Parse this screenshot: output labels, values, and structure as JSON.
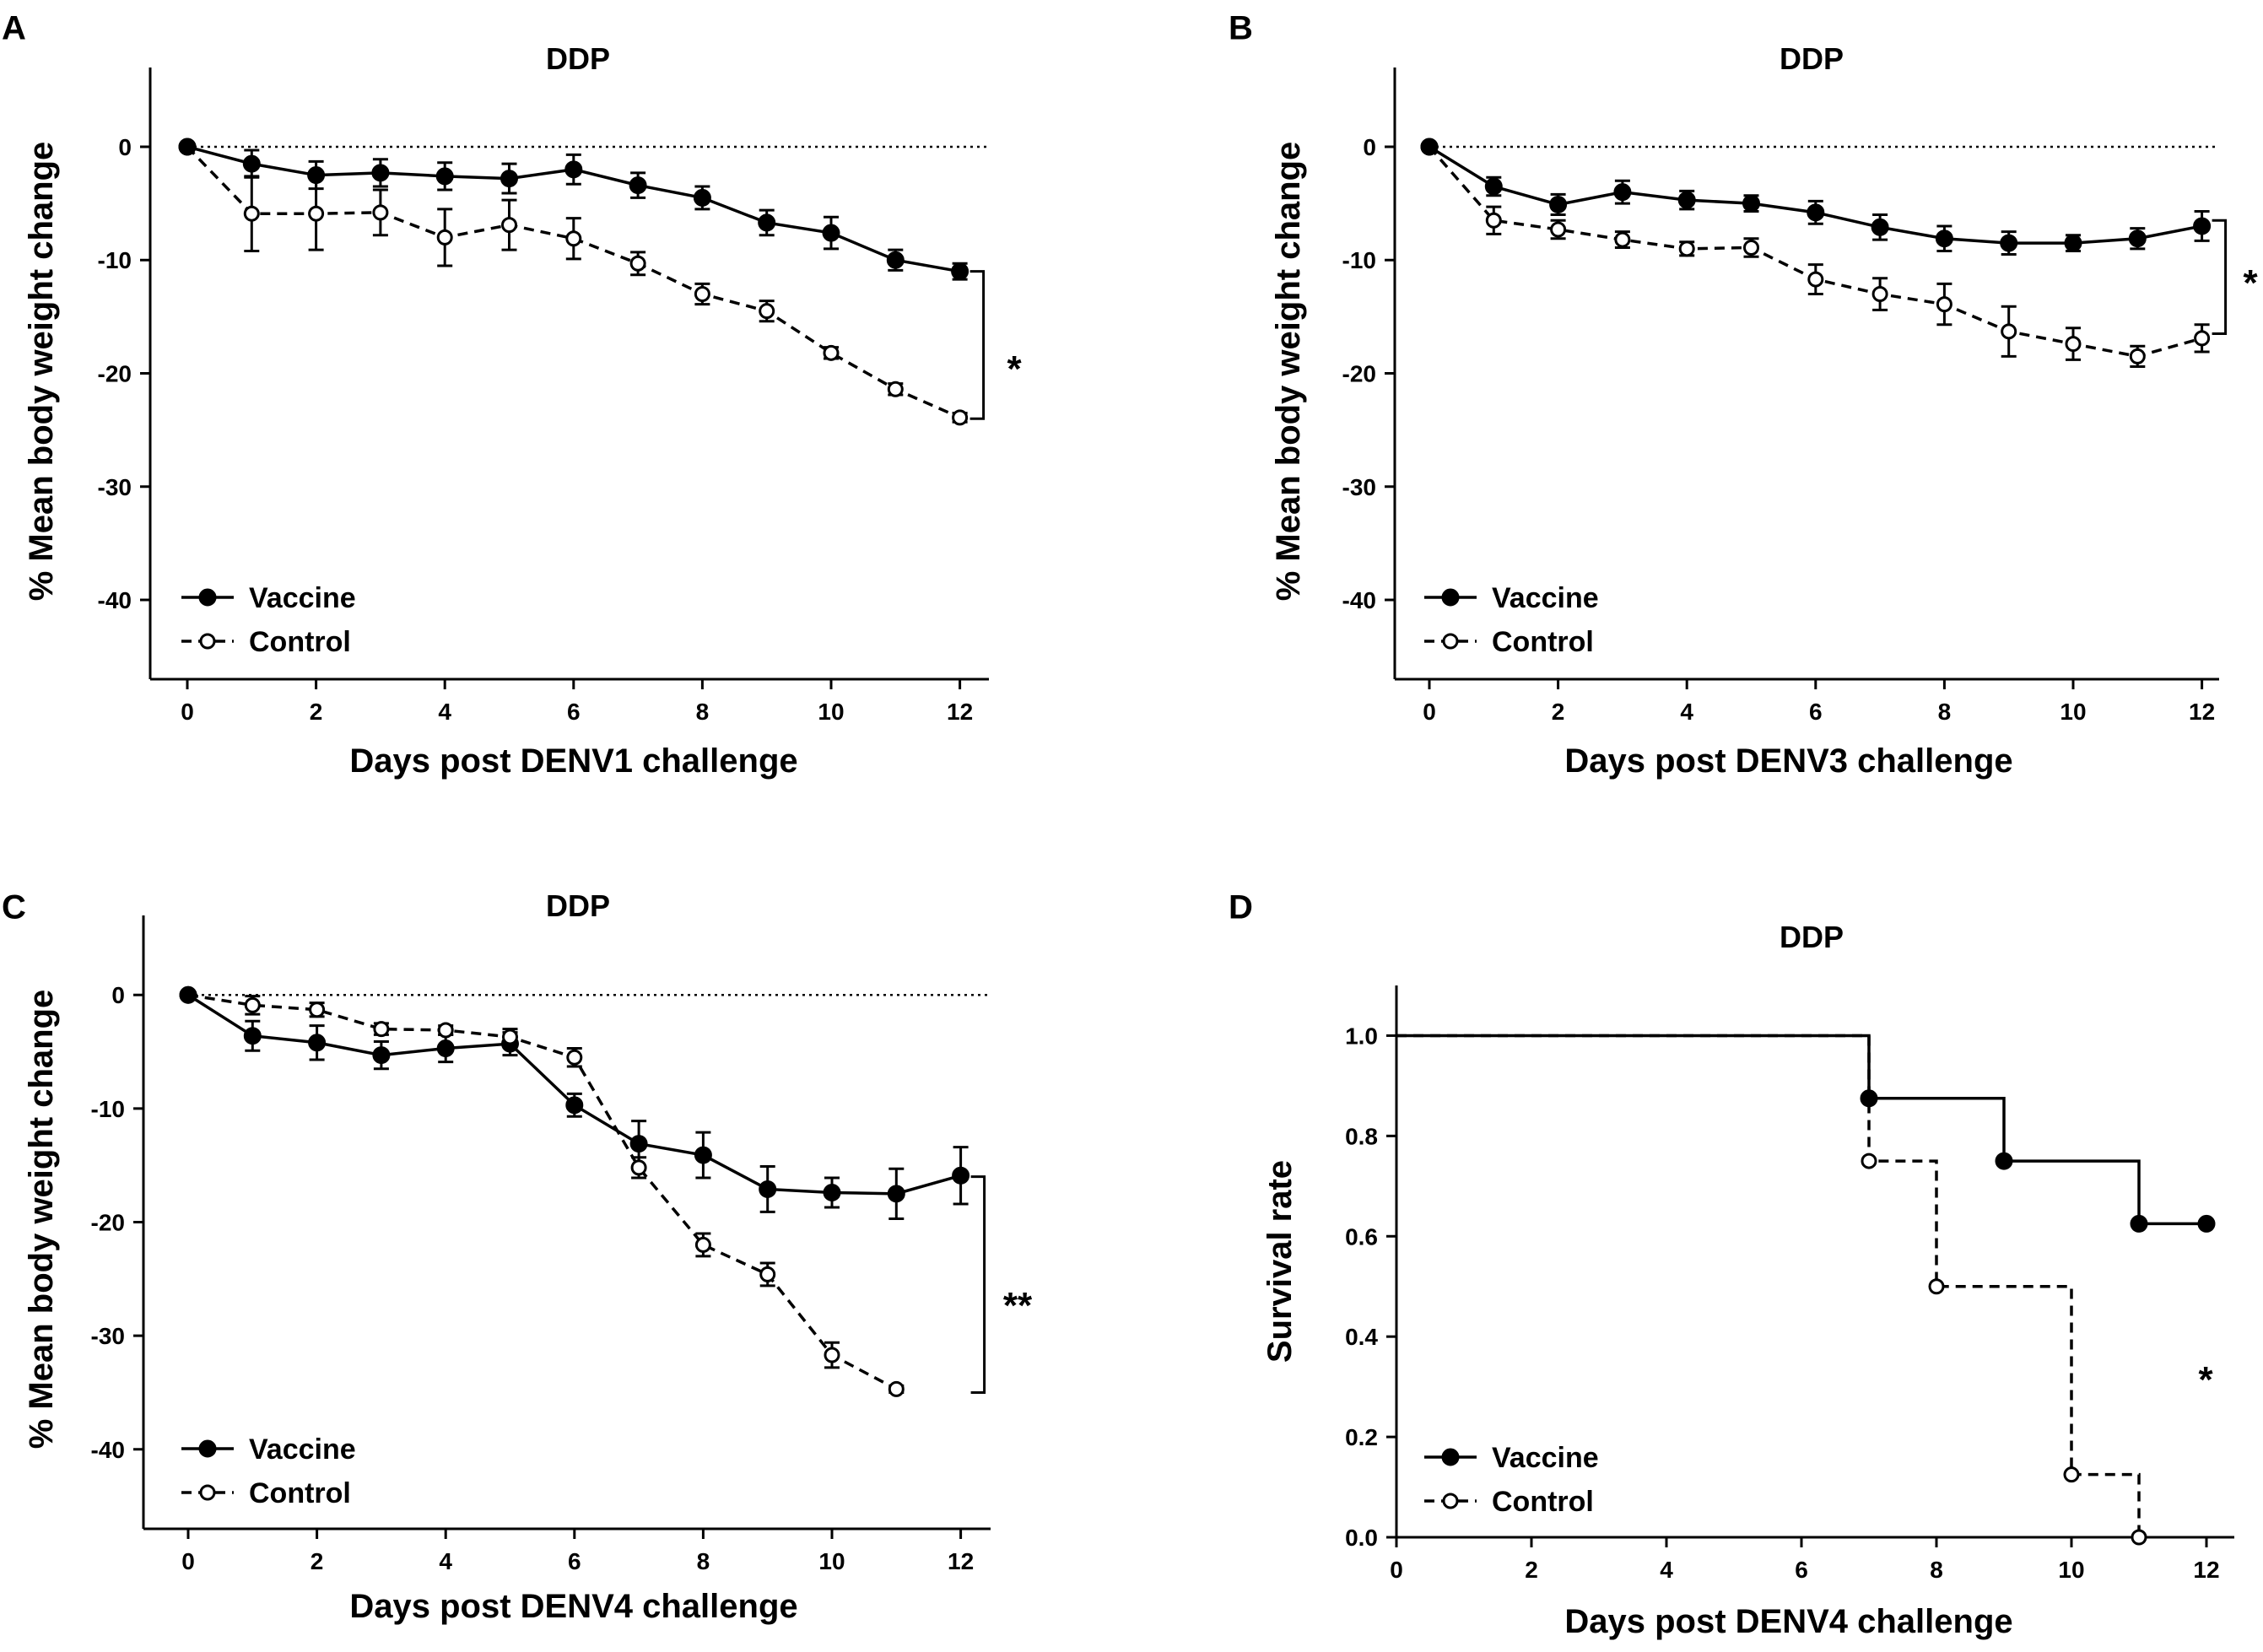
{
  "colors": {
    "series": "#000000",
    "background": "#ffffff"
  },
  "chart_data": [
    {
      "panel": "A",
      "type": "line",
      "title": "DDP",
      "xlabel": "Days post DENV1 challenge",
      "ylabel": "% Mean body weight change",
      "xlim": [
        0,
        12
      ],
      "ylim": [
        -47,
        7
      ],
      "xticks": [
        0,
        2,
        4,
        6,
        8,
        10,
        12
      ],
      "yticks": [
        0,
        -10,
        -20,
        -30,
        -40
      ],
      "reference_line": 0,
      "legend": {
        "position": "bottom-left",
        "entries": [
          "Vaccine",
          "Control"
        ]
      },
      "significance": "*",
      "sig_between": [
        12,
        -11,
        -24
      ],
      "series": [
        {
          "name": "Vaccine",
          "marker": "filled-circle",
          "line": "solid",
          "x": [
            0,
            1,
            2,
            3,
            4,
            5,
            6,
            7,
            8,
            9,
            10,
            11,
            12
          ],
          "y": [
            0,
            -1.5,
            -2.5,
            -2.3,
            -2.6,
            -2.8,
            -2.0,
            -3.4,
            -4.5,
            -6.7,
            -7.6,
            -10.0,
            -11.0
          ],
          "err": [
            0,
            1.2,
            1.2,
            1.2,
            1.2,
            1.3,
            1.3,
            1.1,
            1.0,
            1.1,
            1.4,
            0.9,
            0.7
          ]
        },
        {
          "name": "Control",
          "marker": "open-circle",
          "line": "dashed",
          "x": [
            0,
            1,
            2,
            3,
            4,
            5,
            6,
            7,
            8,
            9,
            10,
            11,
            12
          ],
          "y": [
            0,
            -5.9,
            -5.9,
            -5.8,
            -8.0,
            -6.9,
            -8.1,
            -10.3,
            -13.0,
            -14.5,
            -18.2,
            -21.4,
            -23.9
          ],
          "err": [
            0,
            3.3,
            3.2,
            2.0,
            2.5,
            2.2,
            1.8,
            1.0,
            0.9,
            0.9,
            0.5,
            0.5,
            0.4
          ]
        }
      ]
    },
    {
      "panel": "B",
      "type": "line",
      "title": "DDP",
      "xlabel": "Days post DENV3 challenge",
      "ylabel": "% Mean body weight change",
      "xlim": [
        0,
        12
      ],
      "ylim": [
        -47,
        7
      ],
      "xticks": [
        0,
        2,
        4,
        6,
        8,
        10,
        12
      ],
      "yticks": [
        0,
        -10,
        -20,
        -30,
        -40
      ],
      "reference_line": 0,
      "legend": {
        "position": "bottom-left",
        "entries": [
          "Vaccine",
          "Control"
        ]
      },
      "significance": "*",
      "sig_between": [
        12,
        -6.5,
        -16.5
      ],
      "series": [
        {
          "name": "Vaccine",
          "marker": "filled-circle",
          "line": "solid",
          "x": [
            0,
            1,
            2,
            3,
            4,
            5,
            6,
            7,
            8,
            9,
            10,
            11,
            12
          ],
          "y": [
            0,
            -3.5,
            -5.1,
            -4.0,
            -4.7,
            -5.0,
            -5.8,
            -7.1,
            -8.1,
            -8.5,
            -8.5,
            -8.1,
            -7.0
          ],
          "err": [
            0,
            0.8,
            0.9,
            1.0,
            0.8,
            0.7,
            1.0,
            1.1,
            1.1,
            1.0,
            0.7,
            0.9,
            1.3
          ]
        },
        {
          "name": "Control",
          "marker": "open-circle",
          "line": "dashed",
          "x": [
            0,
            1,
            2,
            3,
            4,
            5,
            6,
            7,
            8,
            9,
            10,
            11,
            12
          ],
          "y": [
            0,
            -6.5,
            -7.3,
            -8.2,
            -9.0,
            -8.9,
            -11.7,
            -13.0,
            -13.9,
            -16.3,
            -17.4,
            -18.5,
            -16.9
          ],
          "err": [
            0,
            1.2,
            0.8,
            0.7,
            0.6,
            0.8,
            1.3,
            1.4,
            1.8,
            2.2,
            1.4,
            0.9,
            1.2
          ]
        }
      ]
    },
    {
      "panel": "C",
      "type": "line",
      "title": "DDP",
      "xlabel": "Days post DENV4 challenge",
      "ylabel": "% Mean body weight change",
      "xlim": [
        0,
        12
      ],
      "ylim": [
        -47,
        7
      ],
      "xticks": [
        0,
        2,
        4,
        6,
        8,
        10,
        12
      ],
      "yticks": [
        0,
        -10,
        -20,
        -30,
        -40
      ],
      "reference_line": 0,
      "legend": {
        "position": "bottom-left",
        "entries": [
          "Vaccine",
          "Control"
        ]
      },
      "significance": "**",
      "sig_between": [
        12,
        -16,
        -35
      ],
      "series": [
        {
          "name": "Vaccine",
          "marker": "filled-circle",
          "line": "solid",
          "x": [
            0,
            1,
            2,
            3,
            4,
            5,
            6,
            7,
            8,
            9,
            10,
            11,
            12
          ],
          "y": [
            0,
            -3.6,
            -4.2,
            -5.3,
            -4.7,
            -4.3,
            -9.7,
            -13.1,
            -14.1,
            -17.1,
            -17.4,
            -17.5,
            -15.9
          ],
          "err": [
            0,
            1.3,
            1.5,
            1.2,
            1.2,
            1.0,
            1.0,
            2.0,
            2.0,
            2.0,
            1.3,
            2.2,
            2.5
          ]
        },
        {
          "name": "Control",
          "marker": "open-circle",
          "line": "dashed",
          "x": [
            0,
            1,
            2,
            3,
            4,
            5,
            6,
            7,
            8,
            9,
            10,
            11
          ],
          "y": [
            0,
            -0.9,
            -1.3,
            -3.0,
            -3.1,
            -3.7,
            -5.5,
            -15.2,
            -22.0,
            -24.6,
            -31.7,
            -34.7
          ],
          "err": [
            0,
            0.8,
            0.6,
            0.5,
            0.4,
            0.7,
            0.8,
            0.9,
            1.0,
            1.0,
            1.1,
            0.3
          ]
        }
      ]
    },
    {
      "panel": "D",
      "type": "step",
      "title": "DDP",
      "xlabel": "Days post DENV4 challenge",
      "ylabel": "Survival rate",
      "xlim": [
        0,
        12.5
      ],
      "ylim": [
        0,
        1.1
      ],
      "xticks": [
        0,
        2,
        4,
        6,
        8,
        10,
        12
      ],
      "yticks": [
        0.0,
        0.2,
        0.4,
        0.6,
        0.8,
        1.0
      ],
      "ytick_labels": [
        "0.0",
        "0.2",
        "0.4",
        "0.6",
        "0.8",
        "1.0"
      ],
      "legend": {
        "position": "bottom-left",
        "entries": [
          "Vaccine",
          "Control"
        ]
      },
      "significance": "*",
      "sig_at": [
        12,
        0.33
      ],
      "series": [
        {
          "name": "Vaccine",
          "marker": "filled-circle",
          "line": "solid",
          "x": [
            0,
            7,
            9,
            11,
            12
          ],
          "y": [
            1.0,
            0.875,
            0.75,
            0.625,
            0.625
          ],
          "markers_at": [
            7,
            9,
            11,
            12
          ]
        },
        {
          "name": "Control",
          "marker": "open-circle",
          "line": "dashed",
          "x": [
            0,
            7,
            8,
            10,
            11
          ],
          "y": [
            1.0,
            0.75,
            0.5,
            0.125,
            0.0
          ],
          "markers_at": [
            7,
            8,
            10,
            11
          ]
        }
      ]
    }
  ]
}
